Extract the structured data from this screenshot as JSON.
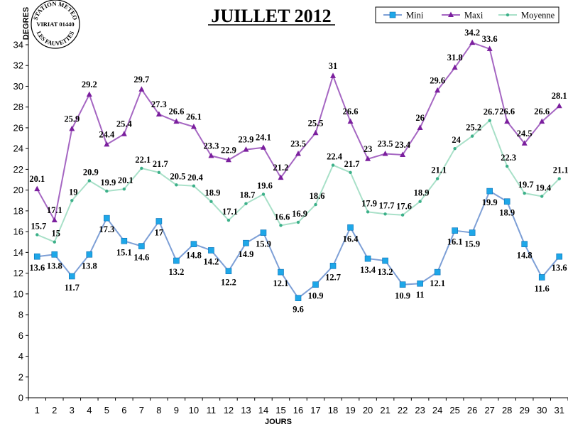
{
  "chart_data": {
    "type": "line",
    "title": "JUILLET 2012",
    "xlabel": "JOURS",
    "ylabel": "DEGRES",
    "categories": [
      "1",
      "2",
      "3",
      "4",
      "5",
      "6",
      "7",
      "8",
      "9",
      "10",
      "11",
      "12",
      "13",
      "14",
      "15",
      "16",
      "17",
      "18",
      "19",
      "20",
      "21",
      "22",
      "23",
      "24",
      "25",
      "26",
      "27",
      "28",
      "29",
      "30",
      "31"
    ],
    "ylim": [
      0,
      36
    ],
    "yticks": [
      0,
      2,
      4,
      6,
      8,
      10,
      12,
      14,
      16,
      18,
      20,
      22,
      24,
      26,
      28,
      30,
      32,
      34
    ],
    "grid": false,
    "legend_position": "top-right",
    "series": [
      {
        "name": "Mini",
        "color": "#7d9fd6",
        "marker_color": "#1ea7e8",
        "marker": "square",
        "values": [
          13.6,
          13.8,
          11.7,
          13.8,
          17.3,
          15.1,
          14.6,
          17,
          13.2,
          14.8,
          14.2,
          12.2,
          14.9,
          15.9,
          12.1,
          9.6,
          10.9,
          12.7,
          16.4,
          13.4,
          13.2,
          10.9,
          11,
          12.1,
          16.1,
          15.9,
          19.9,
          18.9,
          14.8,
          11.6,
          13.6
        ]
      },
      {
        "name": "Maxi",
        "color": "#a566c2",
        "marker_color": "#7b1f9e",
        "marker": "triangle",
        "values": [
          20.1,
          17.1,
          25.9,
          29.2,
          24.4,
          25.4,
          29.7,
          27.3,
          26.6,
          26.1,
          23.3,
          22.9,
          23.9,
          24.1,
          21.2,
          23.5,
          25.5,
          31,
          26.6,
          23,
          23.5,
          23.4,
          26,
          29.6,
          31.8,
          34.2,
          33.6,
          26.6,
          24.5,
          26.6,
          28.1
        ]
      },
      {
        "name": "Moyenne",
        "color": "#a8e0c8",
        "marker_color": "#3cb089",
        "marker": "dot",
        "values": [
          15.7,
          15,
          19,
          20.9,
          19.9,
          20.1,
          22.1,
          21.7,
          20.5,
          20.4,
          18.9,
          17.1,
          18.7,
          19.6,
          16.6,
          16.9,
          18.6,
          22.4,
          21.7,
          17.9,
          17.7,
          17.6,
          18.9,
          21.1,
          24,
          25.2,
          26.7,
          22.3,
          19.7,
          19.4,
          21.1
        ]
      }
    ]
  },
  "stamp": {
    "line1": "STATION METEO",
    "line2": "VIRIAT 01440",
    "line3": "LES FAUVETTES"
  }
}
